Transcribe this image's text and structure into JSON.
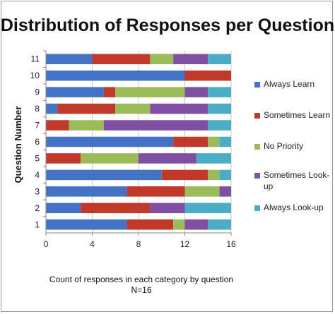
{
  "chart_data": {
    "type": "bar",
    "orientation": "horizontal",
    "stacked": true,
    "title": "Distribution of Responses per Question",
    "xlabel": "Count of responses in each category by question",
    "xlabel_line2": "N=16",
    "ylabel": "Question Number",
    "xlim": [
      0,
      16
    ],
    "xticks": [
      0,
      4,
      8,
      12,
      16
    ],
    "categories": [
      "1",
      "2",
      "3",
      "4",
      "5",
      "6",
      "7",
      "8",
      "9",
      "10",
      "11"
    ],
    "series": [
      {
        "name": "Always Learn",
        "color": "#4472C4",
        "values": [
          7,
          3,
          7,
          10,
          0,
          11,
          0,
          1,
          5,
          12,
          4
        ]
      },
      {
        "name": "Sometimes Learn",
        "color": "#C0392B",
        "values": [
          4,
          6,
          5,
          4,
          3,
          3,
          2,
          5,
          1,
          4,
          5
        ]
      },
      {
        "name": "No Priority",
        "color": "#9BBB59",
        "values": [
          1,
          0,
          3,
          1,
          5,
          1,
          3,
          3,
          6,
          0,
          2
        ]
      },
      {
        "name": "Sometimes Look-up",
        "color": "#7F4FA3",
        "values": [
          2,
          3,
          1,
          0,
          5,
          0,
          9,
          5,
          2,
          0,
          3
        ]
      },
      {
        "name": "Always Look-up",
        "color": "#4BACC6",
        "values": [
          2,
          4,
          0,
          1,
          3,
          1,
          2,
          2,
          2,
          0,
          2
        ]
      }
    ],
    "legend_position": "right",
    "grid": "vertical"
  }
}
